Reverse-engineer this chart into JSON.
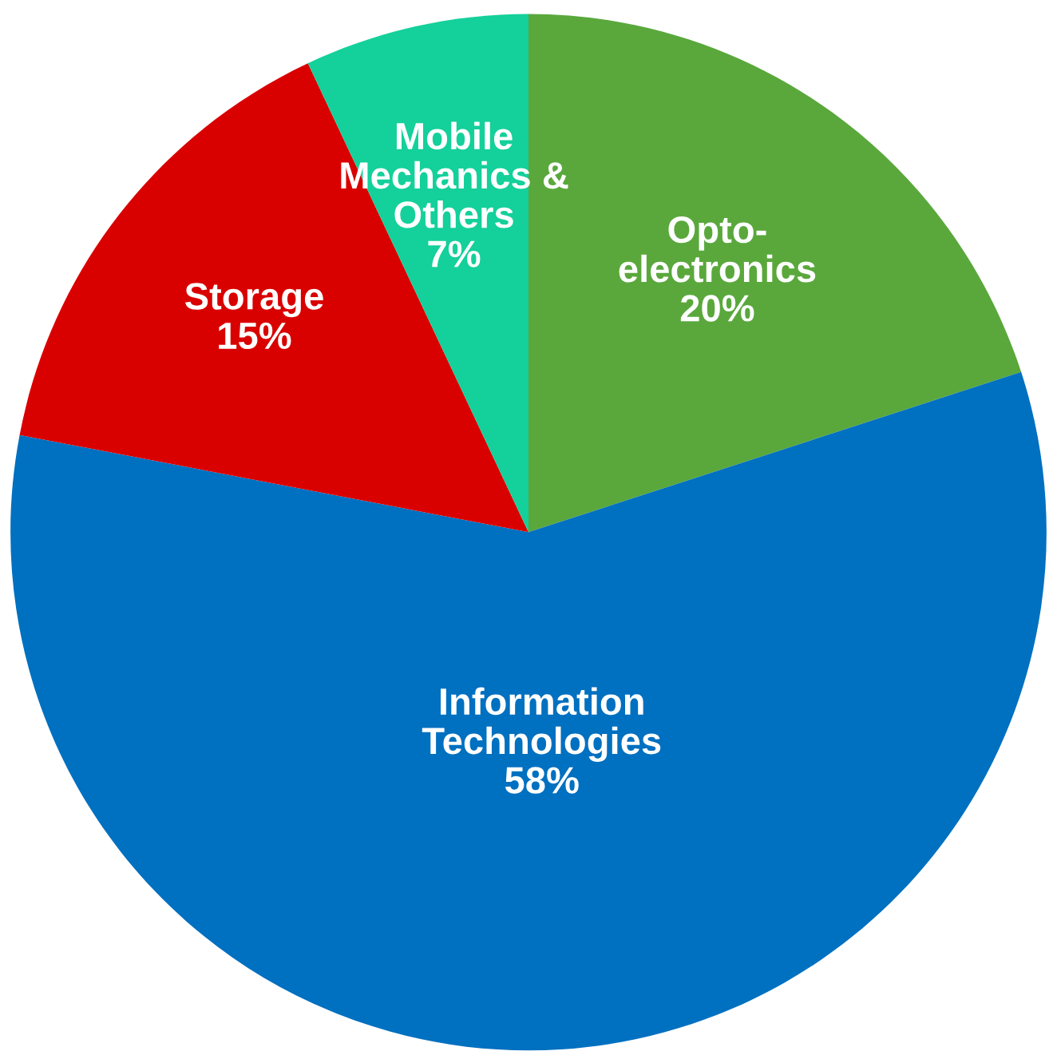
{
  "chart_data": {
    "type": "pie",
    "categories": [
      "Opto-\nelectronics",
      "Information\nTechnologies",
      "Storage",
      "Mobile\nMechanics &\nOthers"
    ],
    "values": [
      20,
      58,
      15,
      7
    ],
    "value_labels": [
      "20%",
      "58%",
      "15%",
      "7%"
    ],
    "colors": [
      "#5aa83c",
      "#0070c0",
      "#d90000",
      "#14d09a"
    ],
    "legend": false
  }
}
